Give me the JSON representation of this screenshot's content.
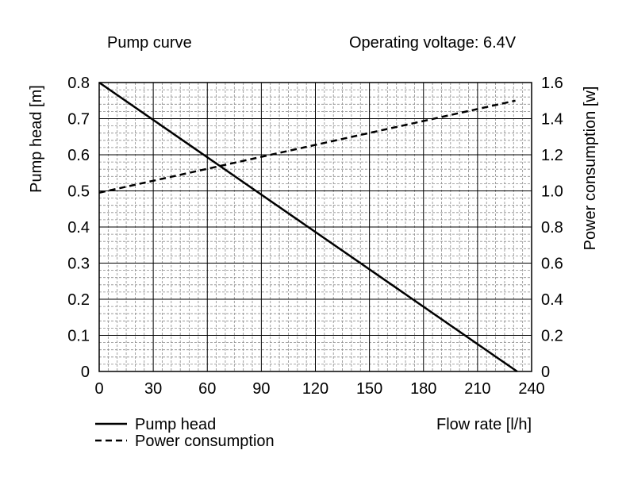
{
  "chart_data": {
    "type": "line",
    "title": "Pump curve",
    "subtitle": "Operating voltage: 6.4V",
    "xlabel": "Flow rate [l/h]",
    "ylabel_left": "Pump head [m]",
    "ylabel_right": "Power consumption [w]",
    "xlim": [
      0,
      240
    ],
    "ylim_left": [
      0,
      0.8
    ],
    "ylim_right": [
      0,
      1.6
    ],
    "x_ticks": [
      "0",
      "30",
      "60",
      "90",
      "120",
      "150",
      "180",
      "210",
      "240"
    ],
    "y_ticks_left": [
      "0",
      "0.1",
      "0.2",
      "0.3",
      "0.4",
      "0.5",
      "0.6",
      "0.7",
      "0.8"
    ],
    "y_ticks_right": [
      "0",
      "0.2",
      "0.4",
      "0.6",
      "0.8",
      "1.0",
      "1.2",
      "1.4",
      "1.6"
    ],
    "grid": true,
    "legend_position": "bottom-left",
    "series": [
      {
        "name": "Pump head",
        "axis": "left",
        "style": "solid",
        "color": "#000000",
        "x": [
          0,
          232
        ],
        "y": [
          0.8,
          0
        ]
      },
      {
        "name": "Power consumption",
        "axis": "right",
        "style": "dashed",
        "color": "#000000",
        "x": [
          0,
          231
        ],
        "y": [
          0.99,
          1.5
        ]
      }
    ]
  }
}
